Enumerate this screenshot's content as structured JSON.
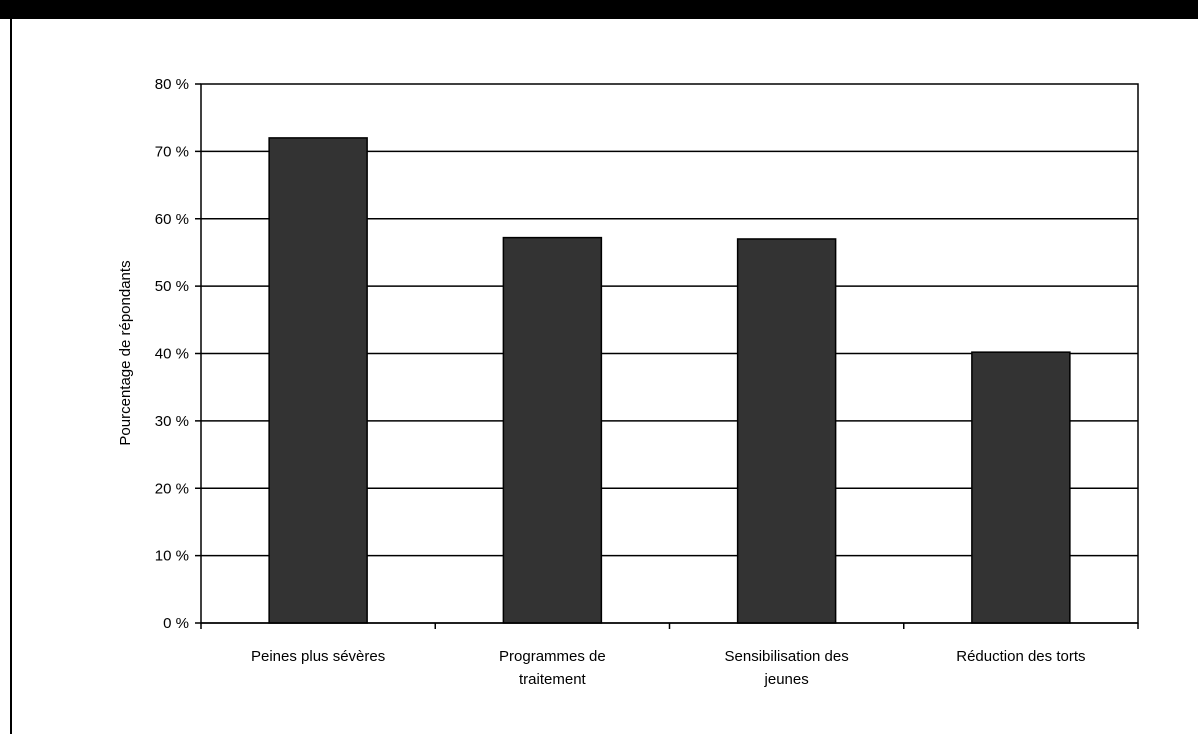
{
  "chart_data": {
    "type": "bar",
    "categories": [
      [
        "Peines plus sévères"
      ],
      [
        "Programmes de",
        "traitement"
      ],
      [
        "Sensibilisation des",
        "jeunes"
      ],
      [
        "Réduction des torts"
      ]
    ],
    "values": [
      72,
      57.2,
      57,
      40.2
    ],
    "ylabel": "Pourcentage de répondants",
    "ylim": [
      0,
      80
    ],
    "yticks": [
      0,
      10,
      20,
      30,
      40,
      50,
      60,
      70,
      80
    ],
    "ytick_labels": [
      "0 %",
      "10 %",
      "20 %",
      "30 %",
      "40 %",
      "50 %",
      "60 %",
      "70 %",
      "80 %"
    ],
    "grid": true,
    "bar_color": "#333333"
  }
}
